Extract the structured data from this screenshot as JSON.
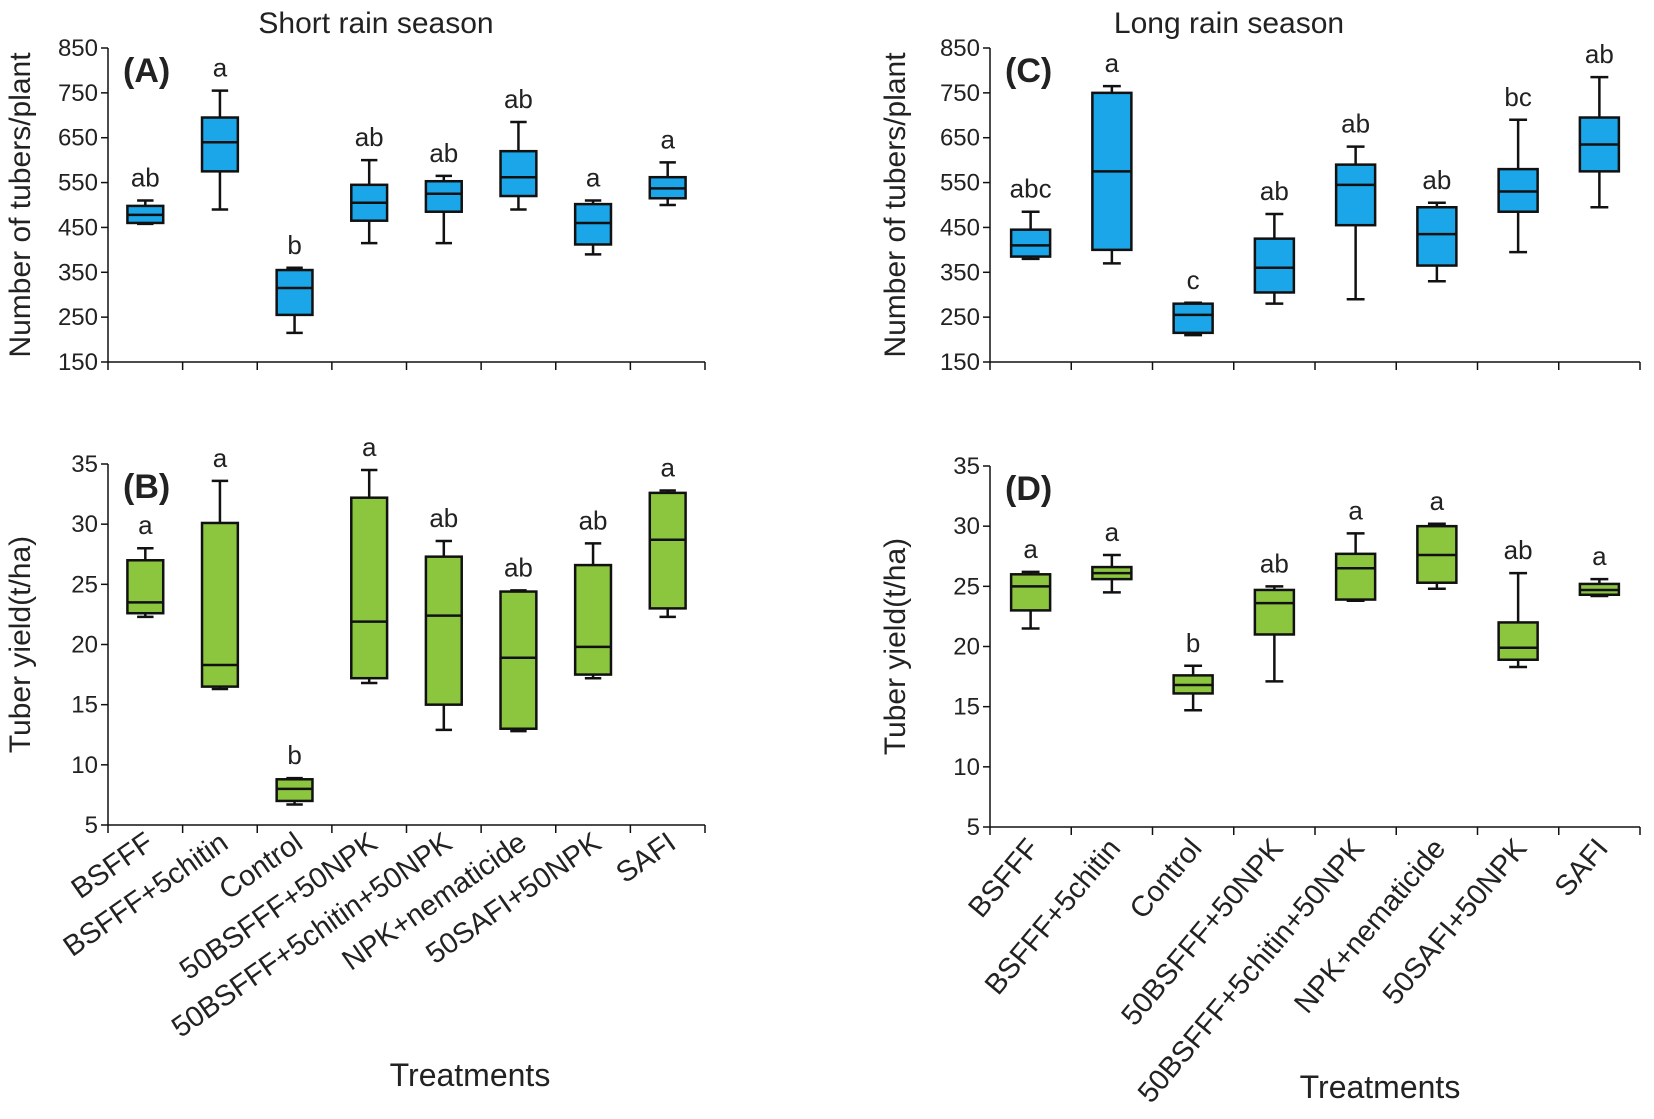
{
  "figure": {
    "seasons": [
      "Short rain season",
      "Long rain season"
    ],
    "x_title": "Treatments",
    "colors": {
      "tubers": "#1aa6e8",
      "yield": "#8cc63f",
      "stroke": "#111111"
    }
  },
  "chart_data": [
    {
      "id": "A",
      "panel_label": "(A)",
      "type": "box",
      "season": "Short rain season",
      "title": "",
      "xlabel": "",
      "ylabel": "Number of tubers/plant",
      "ylim": [
        150,
        850
      ],
      "yticks": [
        150,
        250,
        350,
        450,
        550,
        650,
        750,
        850
      ],
      "fill": "#1aa6e8",
      "categories": [
        "BSFFF",
        "BSFFF+5chitin",
        "Control",
        "50BSFFF+50NPK",
        "50BSFFF+5chitin+50NPK",
        "NPK+nematicide",
        "50SAFI+50NPK",
        "SAFI"
      ],
      "boxes": [
        {
          "min": 458,
          "q1": 460,
          "median": 478,
          "q3": 498,
          "max": 510,
          "letter": "ab"
        },
        {
          "min": 490,
          "q1": 575,
          "median": 640,
          "q3": 695,
          "max": 755,
          "letter": "a"
        },
        {
          "min": 215,
          "q1": 255,
          "median": 315,
          "q3": 355,
          "max": 360,
          "letter": "b"
        },
        {
          "min": 415,
          "q1": 465,
          "median": 505,
          "q3": 545,
          "max": 600,
          "letter": "ab"
        },
        {
          "min": 415,
          "q1": 485,
          "median": 525,
          "q3": 553,
          "max": 565,
          "letter": "ab"
        },
        {
          "min": 490,
          "q1": 520,
          "median": 562,
          "q3": 620,
          "max": 685,
          "letter": "ab"
        },
        {
          "min": 390,
          "q1": 412,
          "median": 460,
          "q3": 502,
          "max": 510,
          "letter": "a"
        },
        {
          "min": 500,
          "q1": 515,
          "median": 537,
          "q3": 562,
          "max": 595,
          "letter": "a"
        }
      ]
    },
    {
      "id": "B",
      "panel_label": "(B)",
      "type": "box",
      "season": "Short rain season",
      "title": "",
      "xlabel": "Treatments",
      "ylabel": "Tuber yield(t/ha)",
      "ylim": [
        5,
        35
      ],
      "yticks": [
        5,
        10,
        15,
        20,
        25,
        30,
        35
      ],
      "fill": "#8cc63f",
      "categories": [
        "BSFFF",
        "BSFFF+5chitin",
        "Control",
        "50BSFFF+50NPK",
        "50BSFFF+5chitin+50NPK",
        "NPK+nematicide",
        "50SAFI+50NPK",
        "SAFI"
      ],
      "boxes": [
        {
          "min": 22.3,
          "q1": 22.6,
          "median": 23.5,
          "q3": 27.0,
          "max": 28.0,
          "letter": "a"
        },
        {
          "min": 16.3,
          "q1": 16.5,
          "median": 18.3,
          "q3": 30.1,
          "max": 33.6,
          "letter": "a"
        },
        {
          "min": 6.7,
          "q1": 7.0,
          "median": 8.0,
          "q3": 8.8,
          "max": 8.9,
          "letter": "b"
        },
        {
          "min": 16.8,
          "q1": 17.2,
          "median": 21.9,
          "q3": 32.2,
          "max": 34.5,
          "letter": "a"
        },
        {
          "min": 12.9,
          "q1": 15.0,
          "median": 22.4,
          "q3": 27.3,
          "max": 28.6,
          "letter": "ab"
        },
        {
          "min": 12.8,
          "q1": 13.0,
          "median": 18.9,
          "q3": 24.4,
          "max": 24.5,
          "letter": "ab"
        },
        {
          "min": 17.2,
          "q1": 17.5,
          "median": 19.8,
          "q3": 26.6,
          "max": 28.4,
          "letter": "ab"
        },
        {
          "min": 22.3,
          "q1": 23.0,
          "median": 28.7,
          "q3": 32.6,
          "max": 32.8,
          "letter": "a"
        }
      ]
    },
    {
      "id": "C",
      "panel_label": "(C)",
      "type": "box",
      "season": "Long rain season",
      "title": "",
      "xlabel": "",
      "ylabel": "Number of tubers/plant",
      "ylim": [
        150,
        850
      ],
      "yticks": [
        150,
        250,
        350,
        450,
        550,
        650,
        750,
        850
      ],
      "fill": "#1aa6e8",
      "categories": [
        "BSFFF",
        "BSFFF+5chitin",
        "Control",
        "50BSFFF+50NPK",
        "50BSFFF+5chitin+50NPK",
        "NPK+nematicide",
        "50SAFI+50NPK",
        "SAFI"
      ],
      "boxes": [
        {
          "min": 380,
          "q1": 385,
          "median": 410,
          "q3": 445,
          "max": 485,
          "letter": "abc"
        },
        {
          "min": 370,
          "q1": 400,
          "median": 575,
          "q3": 750,
          "max": 765,
          "letter": "a"
        },
        {
          "min": 210,
          "q1": 215,
          "median": 255,
          "q3": 280,
          "max": 282,
          "letter": "c"
        },
        {
          "min": 280,
          "q1": 305,
          "median": 360,
          "q3": 425,
          "max": 480,
          "letter": "ab"
        },
        {
          "min": 290,
          "q1": 455,
          "median": 545,
          "q3": 590,
          "max": 630,
          "letter": "ab"
        },
        {
          "min": 330,
          "q1": 365,
          "median": 435,
          "q3": 495,
          "max": 505,
          "letter": "ab"
        },
        {
          "min": 395,
          "q1": 485,
          "median": 530,
          "q3": 580,
          "max": 690,
          "letter": "bc"
        },
        {
          "min": 495,
          "q1": 575,
          "median": 635,
          "q3": 695,
          "max": 785,
          "letter": "ab"
        }
      ]
    },
    {
      "id": "D",
      "panel_label": "(D)",
      "type": "box",
      "season": "Long rain season",
      "title": "",
      "xlabel": "Treatments",
      "ylabel": "Tuber yield(t/ha)",
      "ylim": [
        5,
        35
      ],
      "yticks": [
        5,
        10,
        15,
        20,
        25,
        30,
        35
      ],
      "fill": "#8cc63f",
      "categories": [
        "BSFFF",
        "BSFFF+5chitin",
        "Control",
        "50BSFFF+50NPK",
        "50BSFFF+5chitin+50NPK",
        "NPK+nematicide",
        "50SAFI+50NPK",
        "SAFI"
      ],
      "boxes": [
        {
          "min": 21.5,
          "q1": 23.0,
          "median": 25.0,
          "q3": 26.0,
          "max": 26.2,
          "letter": "a"
        },
        {
          "min": 24.5,
          "q1": 25.6,
          "median": 26.1,
          "q3": 26.6,
          "max": 27.6,
          "letter": "a"
        },
        {
          "min": 14.7,
          "q1": 16.1,
          "median": 16.8,
          "q3": 17.6,
          "max": 18.4,
          "letter": "b"
        },
        {
          "min": 17.1,
          "q1": 21.0,
          "median": 23.6,
          "q3": 24.7,
          "max": 25.0,
          "letter": "ab"
        },
        {
          "min": 23.8,
          "q1": 23.9,
          "median": 26.5,
          "q3": 27.7,
          "max": 29.4,
          "letter": "a"
        },
        {
          "min": 24.8,
          "q1": 25.3,
          "median": 27.6,
          "q3": 30.0,
          "max": 30.2,
          "letter": "a"
        },
        {
          "min": 18.3,
          "q1": 18.9,
          "median": 19.9,
          "q3": 22.0,
          "max": 26.1,
          "letter": "ab"
        },
        {
          "min": 24.2,
          "q1": 24.3,
          "median": 24.7,
          "q3": 25.2,
          "max": 25.6,
          "letter": "a"
        }
      ]
    }
  ]
}
